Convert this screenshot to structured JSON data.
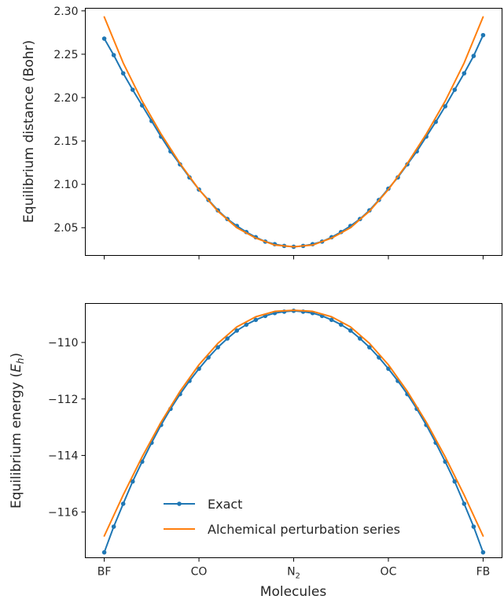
{
  "chart_data": [
    {
      "type": "line",
      "panel": "top",
      "xlabel": "",
      "ylabel": "Equilibrium distance (Bohr)",
      "x_range": [
        -2.2,
        2.2
      ],
      "ylim": [
        2.018,
        2.303
      ],
      "yticks": [
        2.05,
        2.1,
        2.15,
        2.2,
        2.25,
        2.3
      ],
      "ytick_labels": [
        "2.05",
        "2.10",
        "2.15",
        "2.20",
        "2.25",
        "2.30"
      ],
      "xticks": [
        -2,
        -1,
        0,
        1,
        2
      ],
      "xtick_labels": [],
      "series": [
        {
          "name": "Exact",
          "color": "#1f77b4",
          "marker": "dot",
          "x": [
            -2.0,
            -1.9,
            -1.8,
            -1.7,
            -1.6,
            -1.5,
            -1.4,
            -1.3,
            -1.2,
            -1.1,
            -1.0,
            -0.9,
            -0.8,
            -0.7,
            -0.6,
            -0.5,
            -0.4,
            -0.3,
            -0.2,
            -0.1,
            0.0,
            0.1,
            0.2,
            0.3,
            0.4,
            0.5,
            0.6,
            0.7,
            0.8,
            0.9,
            1.0,
            1.1,
            1.2,
            1.3,
            1.4,
            1.5,
            1.6,
            1.7,
            1.8,
            1.9,
            2.0
          ],
          "values": [
            2.268,
            2.249,
            2.228,
            2.209,
            2.191,
            2.173,
            2.155,
            2.138,
            2.123,
            2.108,
            2.094,
            2.082,
            2.07,
            2.06,
            2.052,
            2.045,
            2.039,
            2.034,
            2.031,
            2.029,
            2.028,
            2.029,
            2.031,
            2.034,
            2.039,
            2.045,
            2.052,
            2.06,
            2.07,
            2.082,
            2.095,
            2.108,
            2.123,
            2.138,
            2.155,
            2.172,
            2.19,
            2.209,
            2.228,
            2.248,
            2.272
          ]
        },
        {
          "name": "Alchemical perturbation series",
          "color": "#ff7f0e",
          "marker": "none",
          "x": [
            -2.0,
            -1.8,
            -1.6,
            -1.4,
            -1.2,
            -1.0,
            -0.8,
            -0.6,
            -0.4,
            -0.2,
            0.0,
            0.2,
            0.4,
            0.6,
            0.8,
            1.0,
            1.2,
            1.4,
            1.6,
            1.8,
            2.0
          ],
          "values": [
            2.293,
            2.24,
            2.196,
            2.158,
            2.124,
            2.094,
            2.069,
            2.05,
            2.038,
            2.03,
            2.028,
            2.03,
            2.038,
            2.05,
            2.069,
            2.094,
            2.124,
            2.158,
            2.196,
            2.24,
            2.293
          ]
        }
      ]
    },
    {
      "type": "line",
      "panel": "bottom",
      "xlabel": "Molecules",
      "ylabel": "Equilibrium energy (E_h)",
      "ylabel_parts": {
        "main": "Equilibrium energy (",
        "italic": "E",
        "sub": "h",
        "close": ")"
      },
      "x_range": [
        -2.2,
        2.2
      ],
      "ylim": [
        -117.62,
        -108.62
      ],
      "yticks": [
        -116,
        -114,
        -112,
        -110
      ],
      "ytick_labels": [
        "−116",
        "−114",
        "−112",
        "−110"
      ],
      "xticks": [
        -2,
        -1,
        0,
        1,
        2
      ],
      "xtick_labels": [
        {
          "main": "BF",
          "sub": ""
        },
        {
          "main": "CO",
          "sub": ""
        },
        {
          "main": "N",
          "sub": "2"
        },
        {
          "main": "OC",
          "sub": ""
        },
        {
          "main": "FB",
          "sub": ""
        }
      ],
      "series": [
        {
          "name": "Exact",
          "color": "#1f77b4",
          "marker": "dot",
          "x": [
            -2.0,
            -1.9,
            -1.8,
            -1.7,
            -1.6,
            -1.5,
            -1.4,
            -1.3,
            -1.2,
            -1.1,
            -1.0,
            -0.9,
            -0.8,
            -0.7,
            -0.6,
            -0.5,
            -0.4,
            -0.3,
            -0.2,
            -0.1,
            0.0,
            0.1,
            0.2,
            0.3,
            0.4,
            0.5,
            0.6,
            0.7,
            0.8,
            0.9,
            1.0,
            1.1,
            1.2,
            1.3,
            1.4,
            1.5,
            1.6,
            1.7,
            1.8,
            1.9,
            2.0
          ],
          "values": [
            -117.43,
            -116.52,
            -115.71,
            -114.92,
            -114.22,
            -113.55,
            -112.92,
            -112.35,
            -111.83,
            -111.36,
            -110.93,
            -110.53,
            -110.17,
            -109.86,
            -109.58,
            -109.37,
            -109.2,
            -109.06,
            -108.96,
            -108.91,
            -108.88,
            -108.91,
            -108.96,
            -109.06,
            -109.2,
            -109.37,
            -109.58,
            -109.86,
            -110.17,
            -110.53,
            -110.93,
            -111.36,
            -111.83,
            -112.35,
            -112.92,
            -113.55,
            -114.22,
            -114.92,
            -115.71,
            -116.52,
            -117.43
          ]
        },
        {
          "name": "Alchemical perturbation series",
          "color": "#ff7f0e",
          "marker": "none",
          "x": [
            -2.0,
            -1.8,
            -1.6,
            -1.4,
            -1.2,
            -1.0,
            -0.8,
            -0.6,
            -0.4,
            -0.2,
            0.0,
            0.2,
            0.4,
            0.6,
            0.8,
            1.0,
            1.2,
            1.4,
            1.6,
            1.8,
            2.0
          ],
          "values": [
            -116.85,
            -115.4,
            -114.05,
            -112.82,
            -111.73,
            -110.79,
            -110.03,
            -109.45,
            -109.09,
            -108.9,
            -108.86,
            -108.9,
            -109.09,
            -109.45,
            -110.03,
            -110.79,
            -111.73,
            -112.82,
            -114.05,
            -115.4,
            -116.85
          ]
        }
      ],
      "legend": {
        "placement": "lower-center",
        "entries": [
          "Exact",
          "Alchemical perturbation series"
        ]
      }
    }
  ]
}
